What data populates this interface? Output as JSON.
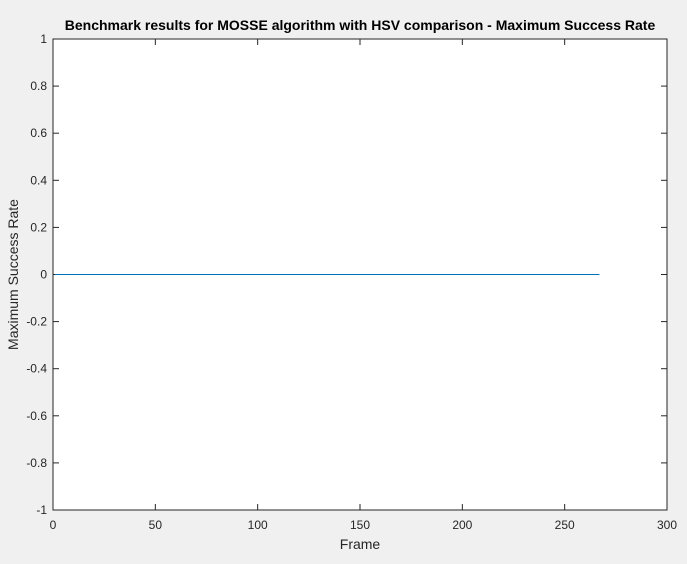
{
  "chart_data": {
    "type": "line",
    "title": "Benchmark results for MOSSE algorithm with HSV comparison - Maximum Success Rate",
    "xlabel": "Frame",
    "ylabel": "Maximum Success Rate",
    "xlim": [
      0,
      300
    ],
    "ylim": [
      -1,
      1
    ],
    "x_ticks": [
      0,
      50,
      100,
      150,
      200,
      250,
      300
    ],
    "x_tick_labels": [
      "0",
      "50",
      "100",
      "150",
      "200",
      "250",
      "300"
    ],
    "y_ticks": [
      -1,
      -0.8,
      -0.6,
      -0.4,
      -0.2,
      0,
      0.2,
      0.4,
      0.6,
      0.8,
      1
    ],
    "y_tick_labels": [
      "-1",
      "-0.8",
      "-0.6",
      "-0.4",
      "-0.2",
      "0",
      "0.2",
      "0.4",
      "0.6",
      "0.8",
      "1"
    ],
    "grid": false,
    "series": [
      {
        "x": [
          1,
          267
        ],
        "values": [
          0,
          0
        ]
      }
    ],
    "colors": {
      "figure_bg": "#f0f0f0",
      "axes_bg": "#ffffff",
      "axes_edge": "#262626",
      "series": "#0072bd",
      "text": "#000000",
      "tick_text": "#262626"
    }
  }
}
